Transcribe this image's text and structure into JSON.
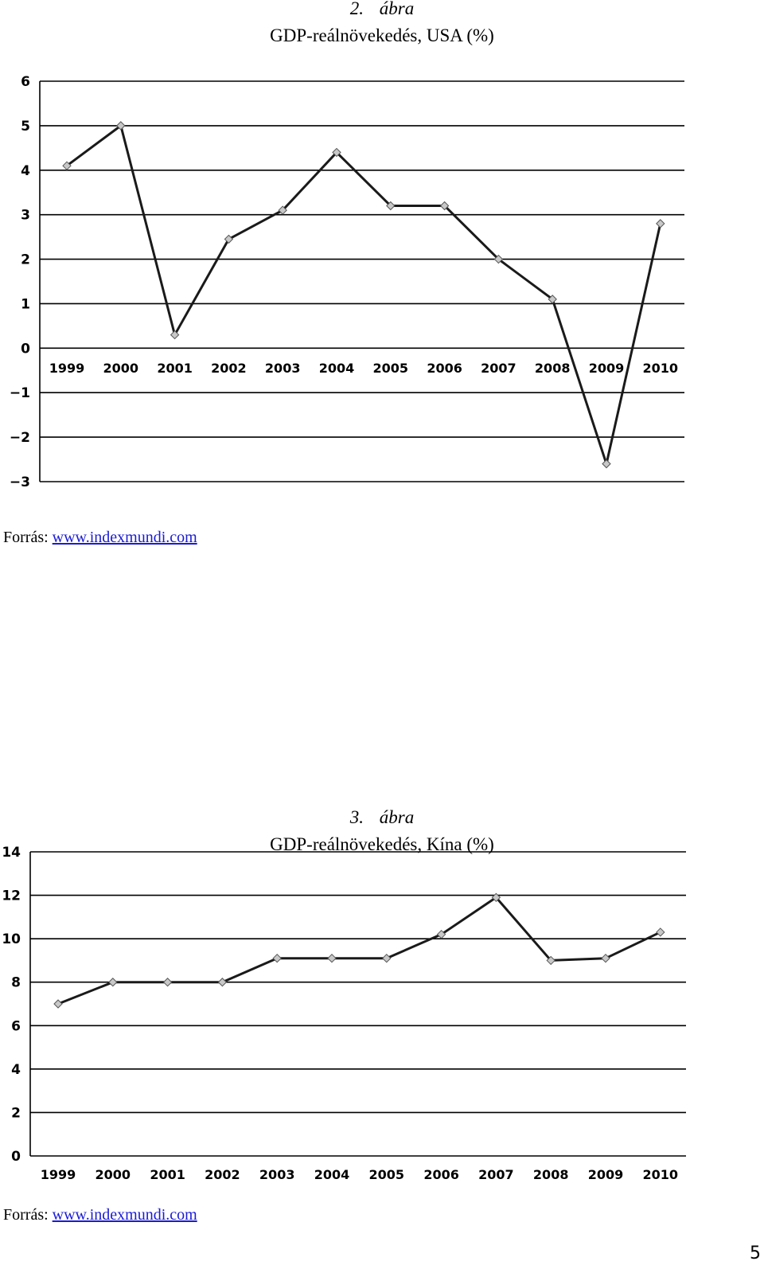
{
  "figures": [
    {
      "number": "2.",
      "word": "ábra",
      "title": "GDP-reálnövekedés, USA (%)",
      "source_label": "Forrás:",
      "source_link": "www.indexmundi.com"
    },
    {
      "number": "3.",
      "word": "ábra",
      "title": "GDP-reálnövekedés, Kína (%)",
      "source_label": "Forrás:",
      "source_link": "www.indexmundi.com"
    }
  ],
  "page_number": "5",
  "chart_data": [
    {
      "type": "line",
      "title": "GDP-reálnövekedés, USA (%)",
      "categories": [
        "1999",
        "2000",
        "2001",
        "2002",
        "2003",
        "2004",
        "2005",
        "2006",
        "2007",
        "2008",
        "2009",
        "2010"
      ],
      "values": [
        4.1,
        5.0,
        0.3,
        2.45,
        3.1,
        4.4,
        3.2,
        3.2,
        2.0,
        1.1,
        -2.6,
        2.8
      ],
      "ylim": [
        -3,
        6
      ],
      "yticks": [
        6,
        5,
        4,
        3,
        2,
        1,
        0,
        -1,
        -2,
        -3
      ],
      "grid": true,
      "line_color": "#1a1a1a",
      "marker_color": "#c8c8c8"
    },
    {
      "type": "line",
      "title": "GDP-reálnövekedés, Kína (%)",
      "categories": [
        "1999",
        "2000",
        "2001",
        "2002",
        "2003",
        "2004",
        "2005",
        "2006",
        "2007",
        "2008",
        "2009",
        "2010"
      ],
      "values": [
        7.0,
        8.0,
        8.0,
        8.0,
        9.1,
        9.1,
        9.1,
        10.2,
        11.9,
        9.0,
        9.1,
        10.3
      ],
      "ylim": [
        0,
        14
      ],
      "yticks": [
        14,
        12,
        10,
        8,
        6,
        4,
        2,
        0
      ],
      "grid": true,
      "line_color": "#1a1a1a",
      "marker_color": "#c8c8c8"
    }
  ]
}
